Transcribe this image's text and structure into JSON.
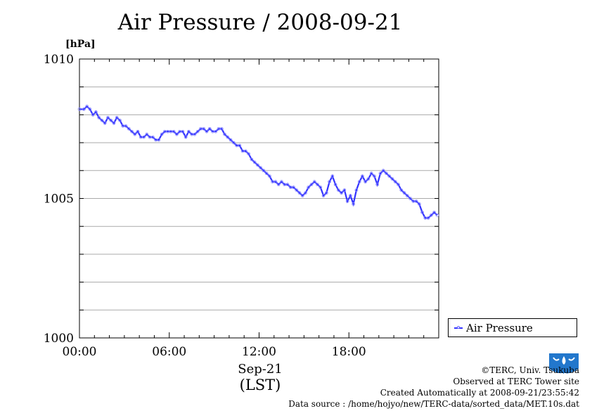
{
  "chart_data": {
    "type": "line",
    "title": "Air Pressure / 2008-09-21",
    "ylabel": "[hPa]",
    "xlabel": "(LST)",
    "date_label": "Sep-21",
    "ylim": [
      1000,
      1010
    ],
    "xlim": [
      0,
      24
    ],
    "y_ticks": [
      "1000",
      "1005",
      "1010"
    ],
    "x_ticks": [
      "00:00",
      "06:00",
      "12:00",
      "18:00"
    ],
    "grid": true,
    "legend_position": "bottom-right outside",
    "series": [
      {
        "name": "Air Pressure",
        "color": "#3333ff",
        "marker_color": "#8888ff",
        "x": [
          0.0,
          0.3,
          0.5,
          0.7,
          0.9,
          1.1,
          1.3,
          1.5,
          1.7,
          1.9,
          2.1,
          2.3,
          2.5,
          2.7,
          2.9,
          3.1,
          3.3,
          3.5,
          3.7,
          3.9,
          4.1,
          4.3,
          4.5,
          4.7,
          4.9,
          5.1,
          5.3,
          5.5,
          5.7,
          5.9,
          6.1,
          6.3,
          6.5,
          6.7,
          6.9,
          7.1,
          7.3,
          7.5,
          7.7,
          7.9,
          8.1,
          8.3,
          8.5,
          8.7,
          8.9,
          9.1,
          9.3,
          9.5,
          9.7,
          9.9,
          10.1,
          10.3,
          10.5,
          10.7,
          10.9,
          11.1,
          11.3,
          11.5,
          11.7,
          11.9,
          12.1,
          12.3,
          12.5,
          12.7,
          12.9,
          13.1,
          13.3,
          13.5,
          13.7,
          13.9,
          14.1,
          14.3,
          14.5,
          14.7,
          14.9,
          15.1,
          15.3,
          15.5,
          15.7,
          15.9,
          16.1,
          16.3,
          16.5,
          16.7,
          16.9,
          17.1,
          17.3,
          17.5,
          17.7,
          17.9,
          18.1,
          18.3,
          18.5,
          18.7,
          18.9,
          19.1,
          19.3,
          19.5,
          19.7,
          19.9,
          20.1,
          20.3,
          20.5,
          20.7,
          20.9,
          21.1,
          21.3,
          21.5,
          21.7,
          21.9,
          22.1,
          22.3,
          22.5,
          22.7,
          22.9,
          23.1,
          23.3,
          23.5,
          23.7,
          23.9
        ],
        "values": [
          1008.2,
          1008.2,
          1008.3,
          1008.2,
          1008.0,
          1008.1,
          1007.9,
          1007.8,
          1007.7,
          1007.9,
          1007.8,
          1007.7,
          1007.9,
          1007.8,
          1007.6,
          1007.6,
          1007.5,
          1007.4,
          1007.3,
          1007.4,
          1007.2,
          1007.2,
          1007.3,
          1007.2,
          1007.2,
          1007.1,
          1007.1,
          1007.3,
          1007.4,
          1007.4,
          1007.4,
          1007.4,
          1007.3,
          1007.4,
          1007.4,
          1007.2,
          1007.4,
          1007.3,
          1007.3,
          1007.4,
          1007.5,
          1007.5,
          1007.4,
          1007.5,
          1007.4,
          1007.4,
          1007.5,
          1007.5,
          1007.3,
          1007.2,
          1007.1,
          1007.0,
          1006.9,
          1006.9,
          1006.7,
          1006.7,
          1006.6,
          1006.4,
          1006.3,
          1006.2,
          1006.1,
          1006.0,
          1005.9,
          1005.8,
          1005.6,
          1005.6,
          1005.5,
          1005.6,
          1005.5,
          1005.5,
          1005.4,
          1005.4,
          1005.3,
          1005.2,
          1005.1,
          1005.2,
          1005.4,
          1005.5,
          1005.6,
          1005.5,
          1005.4,
          1005.1,
          1005.2,
          1005.6,
          1005.8,
          1005.5,
          1005.3,
          1005.2,
          1005.3,
          1004.9,
          1005.1,
          1004.8,
          1005.3,
          1005.6,
          1005.8,
          1005.6,
          1005.7,
          1005.9,
          1005.8,
          1005.5,
          1005.9,
          1006.0,
          1005.9,
          1005.8,
          1005.7,
          1005.6,
          1005.5,
          1005.3,
          1005.2,
          1005.1,
          1005.0,
          1004.9,
          1004.9,
          1004.8,
          1004.5,
          1004.3,
          1004.3,
          1004.4,
          1004.5,
          1004.4
        ]
      }
    ]
  },
  "legend": {
    "label": "Air Pressure"
  },
  "credits": {
    "copyright": "©TERC, Univ. Tsukuba",
    "observed": "Observed at TERC Tower site",
    "created": "Created Automatically at 2008-09-21/23:55:42",
    "source": "Data source : /home/hojyo/new/TERC-data/sorted_data/MET.10s.dat"
  },
  "logo": {
    "text": "TERC",
    "color": "#2277cc"
  }
}
